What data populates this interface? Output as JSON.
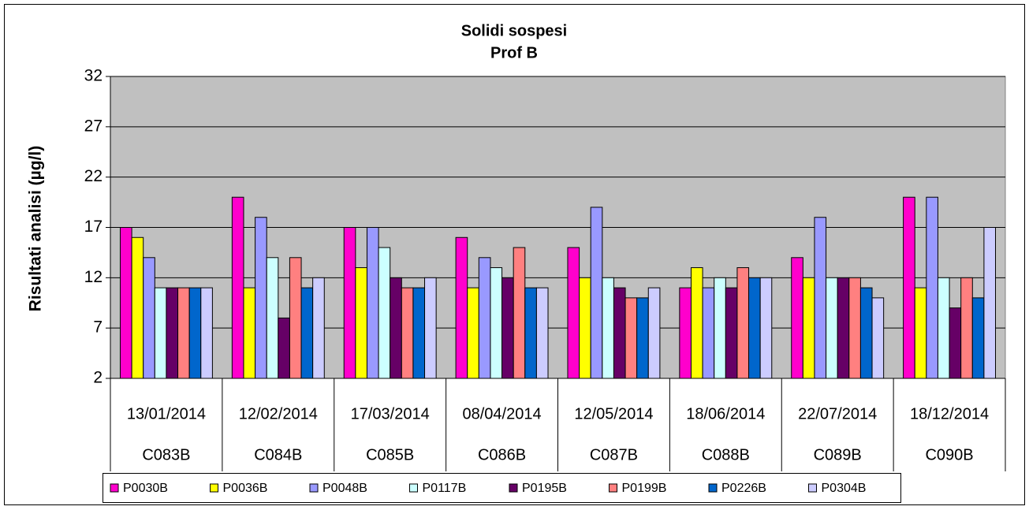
{
  "chart_data": {
    "type": "bar",
    "title": "Solidi sospesi",
    "subtitle": "Prof B",
    "y_label": "Risultati analisi (µg/l)",
    "categories": [
      "13/01/2014",
      "12/02/2014",
      "17/03/2014",
      "08/04/2014",
      "12/05/2014",
      "18/06/2014",
      "22/07/2014",
      "18/12/2014"
    ],
    "groups": [
      "C083B",
      "C084B",
      "C085B",
      "C086B",
      "C087B",
      "C088B",
      "C089B",
      "C090B"
    ],
    "series": [
      {
        "name": "P0030B",
        "color": "#ff00cc",
        "values": [
          17,
          20,
          17,
          16,
          15,
          11,
          14,
          20
        ]
      },
      {
        "name": "P0036B",
        "color": "#ffff00",
        "values": [
          16,
          11,
          13,
          11,
          12,
          13,
          12,
          11
        ]
      },
      {
        "name": "P0048B",
        "color": "#9999ff",
        "values": [
          14,
          18,
          17,
          14,
          19,
          11,
          18,
          20
        ]
      },
      {
        "name": "P0117B",
        "color": "#ccffff",
        "values": [
          11,
          14,
          15,
          13,
          12,
          12,
          12,
          12
        ]
      },
      {
        "name": "P0195B",
        "color": "#660066",
        "values": [
          11,
          8,
          12,
          12,
          11,
          11,
          12,
          9
        ]
      },
      {
        "name": "P0199B",
        "color": "#ff8080",
        "values": [
          11,
          14,
          11,
          15,
          10,
          13,
          12,
          12
        ]
      },
      {
        "name": "P0226B",
        "color": "#0066cc",
        "values": [
          11,
          11,
          11,
          11,
          10,
          12,
          11,
          10
        ]
      },
      {
        "name": "P0304B",
        "color": "#ccccff",
        "values": [
          11,
          12,
          12,
          11,
          11,
          12,
          10,
          17
        ]
      }
    ],
    "ylim": [
      2,
      32
    ],
    "yticks": [
      2,
      7,
      12,
      17,
      22,
      27,
      32
    ],
    "grid": true,
    "legend": "bottom"
  }
}
